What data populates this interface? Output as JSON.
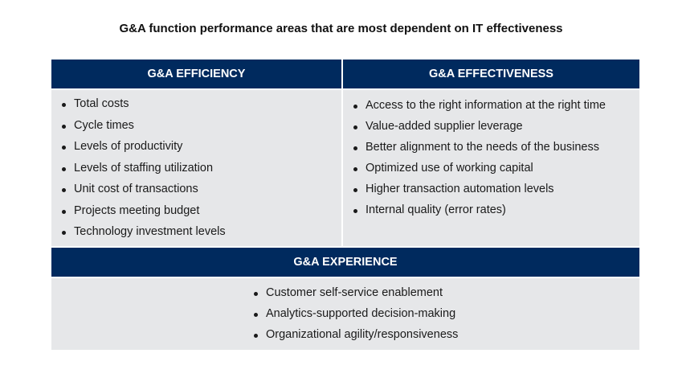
{
  "title": "G&A function performance areas that are most dependent on IT effectiveness",
  "efficiency": {
    "header": "G&A EFFICIENCY",
    "items": [
      "Total costs",
      "Cycle times",
      "Levels of productivity",
      "Levels of staffing utilization",
      "Unit cost of transactions",
      "Projects meeting budget",
      "Technology investment levels"
    ]
  },
  "effectiveness": {
    "header": "G&A EFFECTIVENESS",
    "items": [
      "Access to the right information at the right time",
      "Value-added supplier leverage",
      "Better alignment to the needs of the business",
      "Optimized use of working capital",
      "Higher transaction automation levels",
      "Internal quality (error rates)"
    ]
  },
  "experience": {
    "header": "G&A EXPERIENCE",
    "items": [
      "Customer self-service enablement",
      "Analytics-supported decision-making",
      "Organizational agility/responsiveness"
    ]
  },
  "colors": {
    "navy": "#002a5e",
    "gray": "#e6e7e9"
  }
}
